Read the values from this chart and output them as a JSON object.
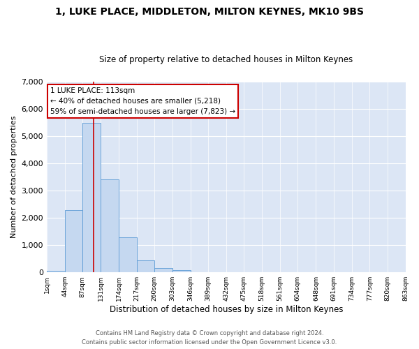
{
  "title1": "1, LUKE PLACE, MIDDLETON, MILTON KEYNES, MK10 9BS",
  "title2": "Size of property relative to detached houses in Milton Keynes",
  "xlabel": "Distribution of detached houses by size in Milton Keynes",
  "ylabel": "Number of detached properties",
  "footer1": "Contains HM Land Registry data © Crown copyright and database right 2024.",
  "footer2": "Contains public sector information licensed under the Open Government Licence v3.0.",
  "annotation_title": "1 LUKE PLACE: 113sqm",
  "annotation_line1": "← 40% of detached houses are smaller (5,218)",
  "annotation_line2": "59% of semi-detached houses are larger (7,823) →",
  "bar_color": "#c5d8f0",
  "bar_edge_color": "#5b9bd5",
  "vline_color": "#cc0000",
  "annotation_box_color": "#ffffff",
  "annotation_box_edge": "#cc0000",
  "background_color": "#dce6f5",
  "bins": [
    1,
    44,
    87,
    131,
    174,
    217,
    260,
    303,
    346,
    389,
    432,
    475,
    518,
    561,
    604,
    648,
    691,
    734,
    777,
    820,
    863
  ],
  "bin_labels": [
    "1sqm",
    "44sqm",
    "87sqm",
    "131sqm",
    "174sqm",
    "217sqm",
    "260sqm",
    "303sqm",
    "346sqm",
    "389sqm",
    "432sqm",
    "475sqm",
    "518sqm",
    "561sqm",
    "604sqm",
    "648sqm",
    "691sqm",
    "734sqm",
    "777sqm",
    "820sqm",
    "863sqm"
  ],
  "bar_heights": [
    50,
    2280,
    5480,
    3420,
    1290,
    440,
    150,
    80,
    10,
    5,
    2,
    1,
    0,
    0,
    0,
    0,
    0,
    0,
    0,
    0
  ],
  "vline_x": 113,
  "ylim": [
    0,
    7000
  ],
  "yticks": [
    0,
    1000,
    2000,
    3000,
    4000,
    5000,
    6000,
    7000
  ]
}
